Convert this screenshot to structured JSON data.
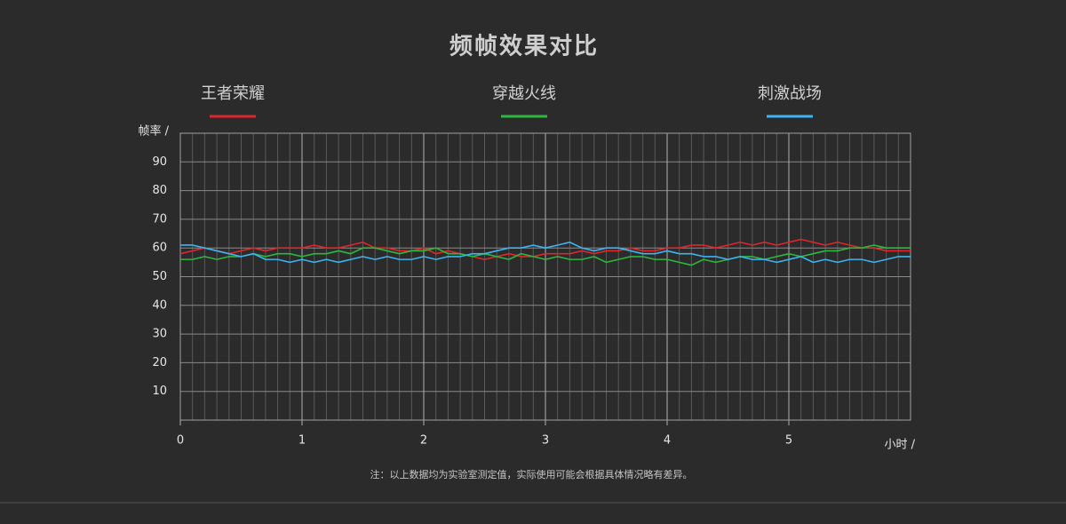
{
  "chart_data": {
    "type": "line",
    "title": "频帧效果对比",
    "y_label": "帧率 /",
    "x_label": "小时 /",
    "note": "注：以上数据均为实验室测定值，实际使用可能会根据具体情况略有差异。",
    "xlim": [
      0,
      6
    ],
    "xticks": [
      0,
      1,
      2,
      3,
      4,
      5
    ],
    "ylim": [
      0,
      100
    ],
    "yticks": [
      10,
      20,
      30,
      40,
      50,
      60,
      70,
      80,
      90
    ],
    "grid": true,
    "x": [
      0,
      0.1,
      0.2,
      0.3,
      0.4,
      0.5,
      0.6,
      0.7,
      0.8,
      0.9,
      1,
      1.1,
      1.2,
      1.3,
      1.4,
      1.5,
      1.6,
      1.7,
      1.8,
      1.9,
      2,
      2.1,
      2.2,
      2.3,
      2.4,
      2.5,
      2.6,
      2.7,
      2.8,
      2.9,
      3,
      3.1,
      3.2,
      3.3,
      3.4,
      3.5,
      3.6,
      3.7,
      3.8,
      3.9,
      4,
      4.1,
      4.2,
      4.3,
      4.4,
      4.5,
      4.6,
      4.7,
      4.8,
      4.9,
      5,
      5.1,
      5.2,
      5.3,
      5.4,
      5.5,
      5.6,
      5.7,
      5.8,
      5.9,
      6
    ],
    "series": [
      {
        "name": "王者荣耀",
        "color": "#e0262b",
        "values": [
          58,
          59,
          60,
          59,
          58,
          59,
          60,
          59,
          60,
          60,
          60,
          61,
          60,
          60,
          61,
          62,
          60,
          60,
          59,
          59,
          60,
          58,
          59,
          58,
          57,
          56,
          57,
          58,
          57,
          57,
          58,
          58,
          58,
          59,
          58,
          59,
          59,
          60,
          59,
          59,
          60,
          60,
          61,
          61,
          60,
          61,
          62,
          61,
          62,
          61,
          62,
          63,
          62,
          61,
          62,
          61,
          60,
          60,
          59,
          59,
          59
        ]
      },
      {
        "name": "穿越火线",
        "color": "#2cb83c",
        "values": [
          56,
          56,
          57,
          56,
          57,
          57,
          58,
          57,
          58,
          58,
          57,
          58,
          58,
          59,
          58,
          60,
          60,
          59,
          58,
          59,
          59,
          60,
          58,
          58,
          57,
          58,
          57,
          56,
          58,
          57,
          56,
          57,
          56,
          56,
          57,
          55,
          56,
          57,
          57,
          56,
          56,
          55,
          54,
          56,
          55,
          56,
          57,
          57,
          56,
          57,
          58,
          57,
          58,
          59,
          59,
          60,
          60,
          61,
          60,
          60,
          60
        ]
      },
      {
        "name": "刺激战场",
        "color": "#3ab4f2",
        "values": [
          61,
          61,
          60,
          59,
          58,
          57,
          58,
          56,
          56,
          55,
          56,
          55,
          56,
          55,
          56,
          57,
          56,
          57,
          56,
          56,
          57,
          56,
          57,
          57,
          58,
          58,
          59,
          60,
          60,
          61,
          60,
          61,
          62,
          60,
          59,
          60,
          60,
          59,
          58,
          58,
          59,
          58,
          58,
          57,
          57,
          56,
          57,
          56,
          56,
          55,
          56,
          57,
          55,
          56,
          55,
          56,
          56,
          55,
          56,
          57,
          57
        ]
      }
    ]
  }
}
